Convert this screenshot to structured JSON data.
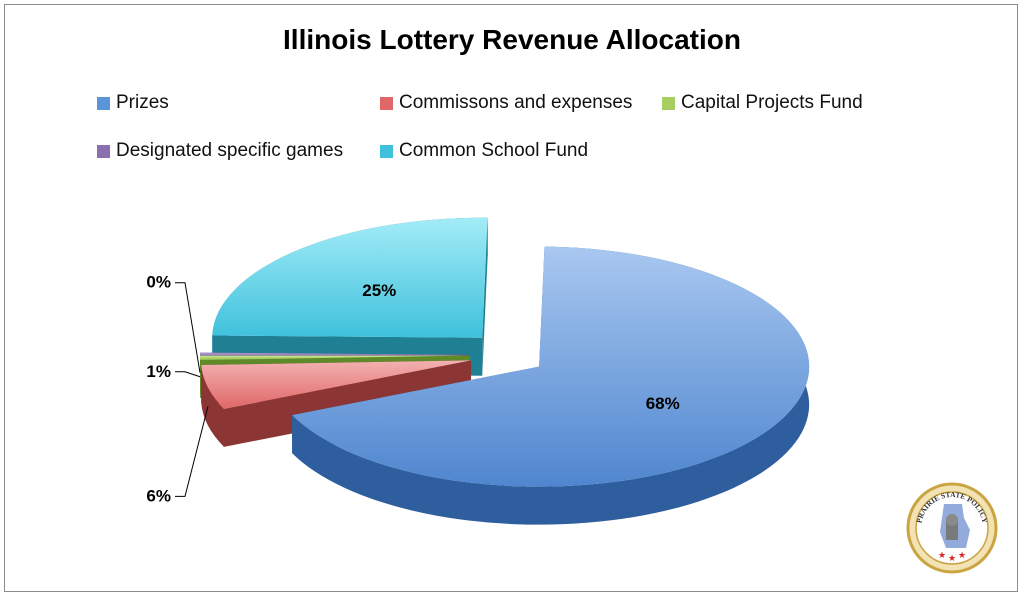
{
  "chart_data": {
    "type": "pie",
    "title": "Illinois Lottery Revenue Allocation",
    "slices": [
      {
        "name": "Prizes",
        "value": 68,
        "label": "68%",
        "color": "#5b94d8"
      },
      {
        "name": "Commissons and expenses",
        "value": 6,
        "label": "6%",
        "color": "#e06767"
      },
      {
        "name": "Capital Projects Fund",
        "value": 0.6,
        "label": "1%",
        "color": "#a6cf5f"
      },
      {
        "name": "Designated specific games",
        "value": 0.3,
        "label": "0%",
        "color": "#8a6fb0"
      },
      {
        "name": "Common School Fund",
        "value": 25,
        "label": "25%",
        "color": "#3fc1dc"
      }
    ],
    "legend": "top",
    "style": "3d-exploded"
  },
  "logo": {
    "text": "PRAIRIE STATE POLICY"
  }
}
